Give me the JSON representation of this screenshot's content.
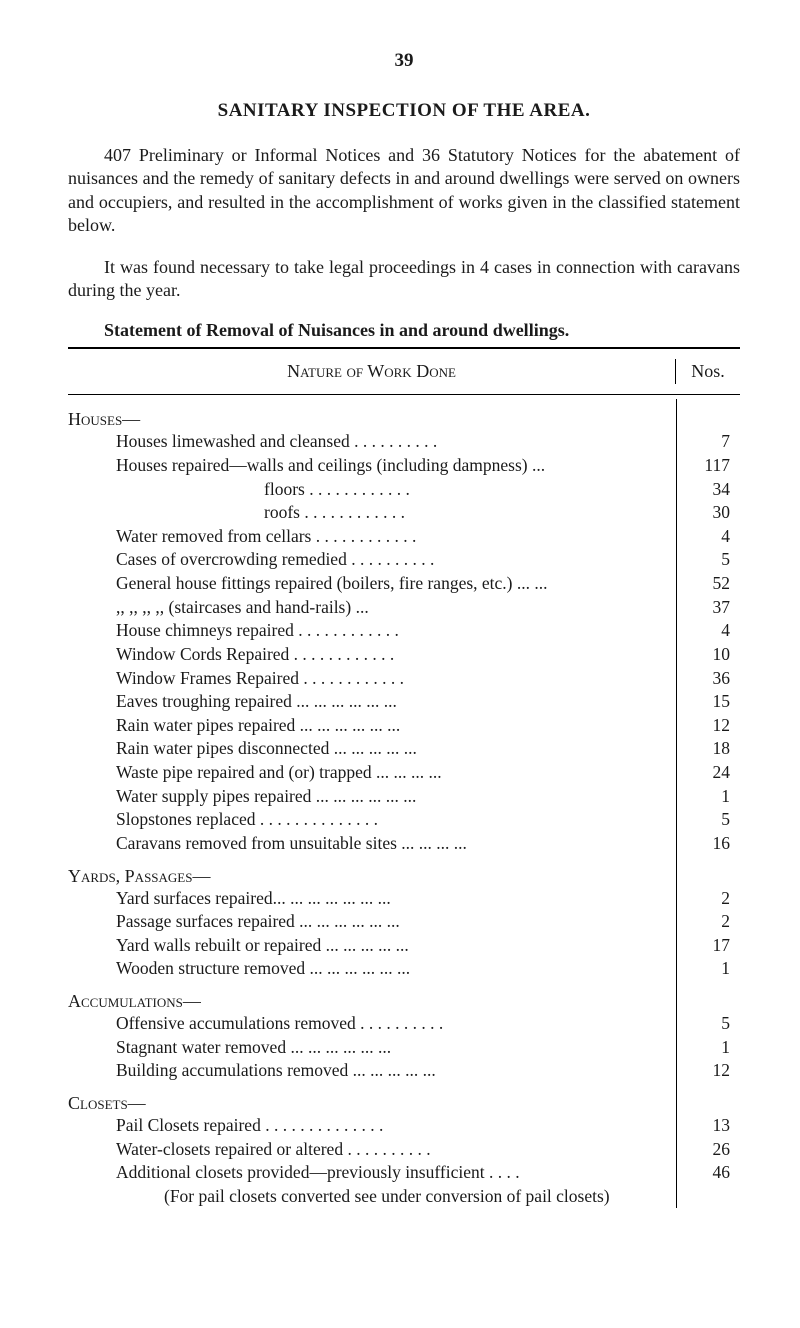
{
  "page_number": "39",
  "title": "SANITARY INSPECTION OF THE AREA.",
  "para1": "407 Preliminary or Informal Notices and 36 Statutory Notices for the abatement of nuisances and the remedy of sanitary defects in and around dwellings were served on owners and occupiers, and resulted in the accomplishment of works given in the classified statement below.",
  "para2": "It was found necessary to take legal proceedings in 4 cases in connection with caravans during the year.",
  "statement": "Statement of Removal of Nuisances in and around dwellings.",
  "header": {
    "nature": "Nature of Work Done",
    "nos": "Nos."
  },
  "sections": [
    {
      "heading": "Houses—",
      "rows": [
        {
          "label": "Houses limewashed and cleansed    . .        . .        . .        . .        . .",
          "nos": "7"
        },
        {
          "label": "Houses repaired—walls and ceilings (including dampness)        ...",
          "nos": "117"
        },
        {
          "label": "floors            . .        . .        . .        . .        . .        . .",
          "nos": "34",
          "indent": true
        },
        {
          "label": "roofs             . .        . .        . .        . .        . .        . .",
          "nos": "30",
          "indent": true
        },
        {
          "label": "Water removed from cellars . .        . .        . .        . .        . .        . .",
          "nos": "4"
        },
        {
          "label": "Cases of overcrowding remedied        . .        . .        . .        . .        . .",
          "nos": "5"
        },
        {
          "label": "General house fittings repaired (boilers, fire ranges, etc.) ...        ...",
          "nos": "52"
        },
        {
          "label": "      ,,          ,,          ,,          ,,    (staircases and hand-rails)        ...",
          "nos": "37"
        },
        {
          "label": "House chimneys repaired        . .        . .        . .        . .        . .        . .",
          "nos": "4"
        },
        {
          "label": "Window Cords Repaired        . .        . .        . .        . .        . .        . .",
          "nos": "10"
        },
        {
          "label": "Window Frames Repaired      . .        . .        . .        . .        . .        . .",
          "nos": "36"
        },
        {
          "label": "Eaves troughing repaired        ...        ...        ...        ...        ...        ...",
          "nos": "15"
        },
        {
          "label": "Rain water pipes repaired       ...        ...        ...        ...        ...        ...",
          "nos": "12"
        },
        {
          "label": "Rain water pipes disconnected          ...        ...        ...        ...        ...",
          "nos": "18"
        },
        {
          "label": "Waste pipe repaired and (or) trapped           ...        ...        ...        ...",
          "nos": "24"
        },
        {
          "label": "Water supply pipes repaired ...        ...        ...        ...        ...        ...",
          "nos": "1"
        },
        {
          "label": "Slopstones replaced     . .        . .        . .        . .        . .        . .        . .",
          "nos": "5"
        },
        {
          "label": "Caravans removed from unsuitable sites       ...        ...        ...        ...",
          "nos": "16"
        }
      ]
    },
    {
      "heading": "Yards, Passages—",
      "rows": [
        {
          "label": "Yard surfaces repaired...        ...        ...        ...        ...        ...        ...",
          "nos": "2"
        },
        {
          "label": "Passage surfaces repaired        ...        ...        ...        ...        ...        ...",
          "nos": "2"
        },
        {
          "label": "Yard walls rebuilt or repaired            ...        ...        ...        ...        ...",
          "nos": "17"
        },
        {
          "label": "Wooden structure removed   ...        ...        ...        ...        ...        ...",
          "nos": "1"
        }
      ]
    },
    {
      "heading": "Accumulations—",
      "rows": [
        {
          "label": "Offensive accumulations removed    . .        . .        . .        . .        . .",
          "nos": "5"
        },
        {
          "label": "Stagnant water removed        ...        ...        ...        ...        ...        ...",
          "nos": "1"
        },
        {
          "label": "Building accumulations removed       ...        ...        ...        ...        ...",
          "nos": "12"
        }
      ]
    },
    {
      "heading": "Closets—",
      "rows": [
        {
          "label": "Pail Closets repaired   . .        . .        . .        . .        . .        . .        . .",
          "nos": "13"
        },
        {
          "label": "Water-closets repaired or altered       . .        . .        . .        . .        . .",
          "nos": "26"
        },
        {
          "label": "Additional closets provided—previously insufficient         . .        . .",
          "nos": "46"
        }
      ],
      "note": "(For pail closets converted see under conversion of pail closets)"
    }
  ],
  "style": {
    "body_width": 800,
    "body_height": 1328,
    "bg": "#ffffff",
    "text_color": "#1a1a1a",
    "font": "Times New Roman",
    "title_size": 19,
    "body_size": 18
  }
}
